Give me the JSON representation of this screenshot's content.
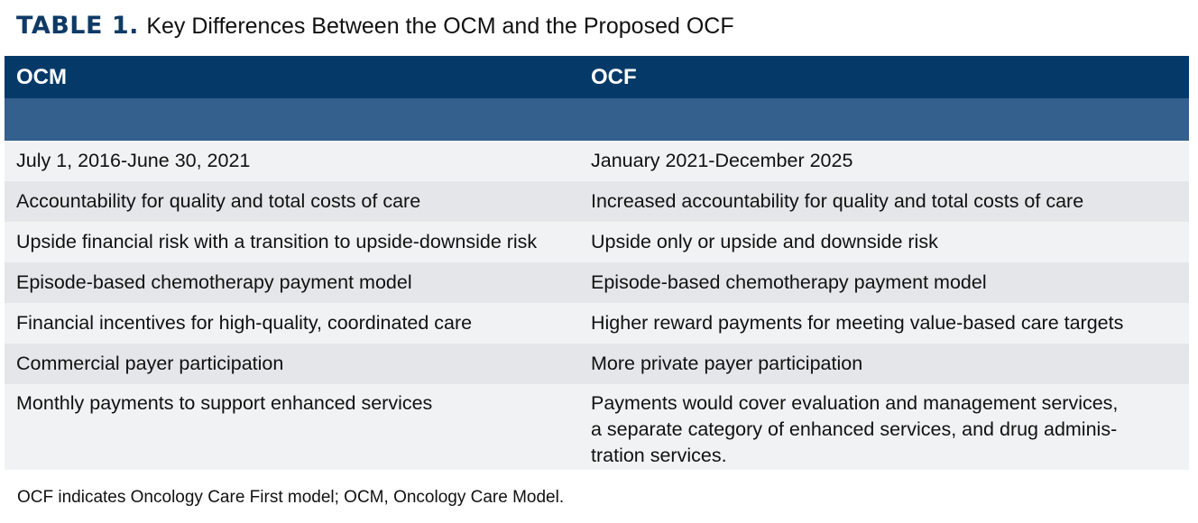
{
  "title": {
    "label": "TABLE 1.",
    "text": "Key Differences Between the OCM and the Proposed OCF"
  },
  "table": {
    "columns": [
      "OCM",
      "OCF"
    ],
    "rows": [
      {
        "ocm": "July 1, 2016-June 30, 2021",
        "ocf": "January 2021-December 2025"
      },
      {
        "ocm": "Accountability for quality and total costs of care",
        "ocf": "Increased accountability for quality and total costs of care"
      },
      {
        "ocm": "Upside financial risk with a transition to upside-downside risk",
        "ocf": "Upside only or upside and downside risk"
      },
      {
        "ocm": "Episode-based chemotherapy payment model",
        "ocf": "Episode-based chemotherapy payment model"
      },
      {
        "ocm": "Financial incentives for high-quality, coordinated care",
        "ocf": "Higher reward payments for meeting value-based care targets"
      },
      {
        "ocm": "Commercial payer participation",
        "ocf": "More private payer participation"
      },
      {
        "ocm": "Monthly payments to support enhanced services",
        "ocf_lines": [
          "Payments would cover evaluation and management services,",
          "a separate category of enhanced services, and drug adminis-",
          "tration services."
        ]
      }
    ]
  },
  "footnote": "OCF indicates Oncology Care First model; OCM, Oncology Care Model.",
  "colors": {
    "header_bg": "#053a68",
    "subheader_bg": "#33608c",
    "row_light": "#f1f2f3",
    "row_dark": "#e4e6e9",
    "title_label": "#0f3a66"
  }
}
